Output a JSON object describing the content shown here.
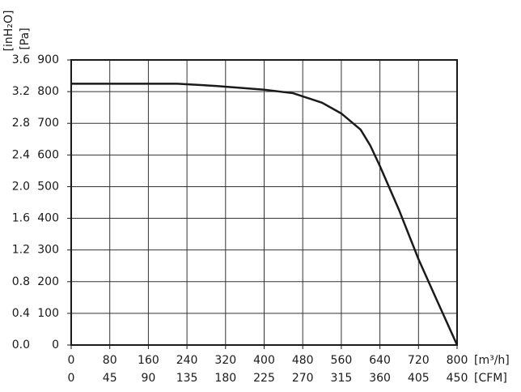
{
  "chart_data": {
    "type": "line",
    "y_label": "[Pa]",
    "y2_label": "[inH₂O]",
    "x_label": "[m³/h]",
    "x2_label": "[CFM]",
    "x": [
      0,
      80,
      160,
      220,
      300,
      400,
      460,
      520,
      560,
      600,
      620,
      640,
      680,
      720,
      760,
      800
    ],
    "series": [
      {
        "color": "#1a1a1a",
        "values": [
          825,
          825,
          825,
          825,
          818,
          806,
          795,
          765,
          731,
          680,
          630,
          565,
          425,
          271,
          135,
          0
        ]
      }
    ],
    "xlim": [
      0,
      800
    ],
    "xticks": [
      0,
      80,
      160,
      240,
      320,
      400,
      480,
      560,
      640,
      720,
      800
    ],
    "x2lim": [
      0,
      450
    ],
    "x2ticks": [
      0,
      45,
      90,
      135,
      180,
      225,
      270,
      315,
      360,
      405,
      450
    ],
    "ylim": [
      0,
      900
    ],
    "yticks": [
      0,
      100,
      200,
      300,
      400,
      500,
      600,
      700,
      800,
      900
    ],
    "y2lim": [
      0,
      3.6
    ],
    "y2ticks": [
      {
        "value": 0,
        "label": "0.0"
      },
      0.4,
      0.8,
      1.2,
      1.6,
      {
        "value": 2,
        "label": "2.0"
      },
      2.4,
      2.8,
      3.2,
      3.6
    ],
    "grid": true
  }
}
